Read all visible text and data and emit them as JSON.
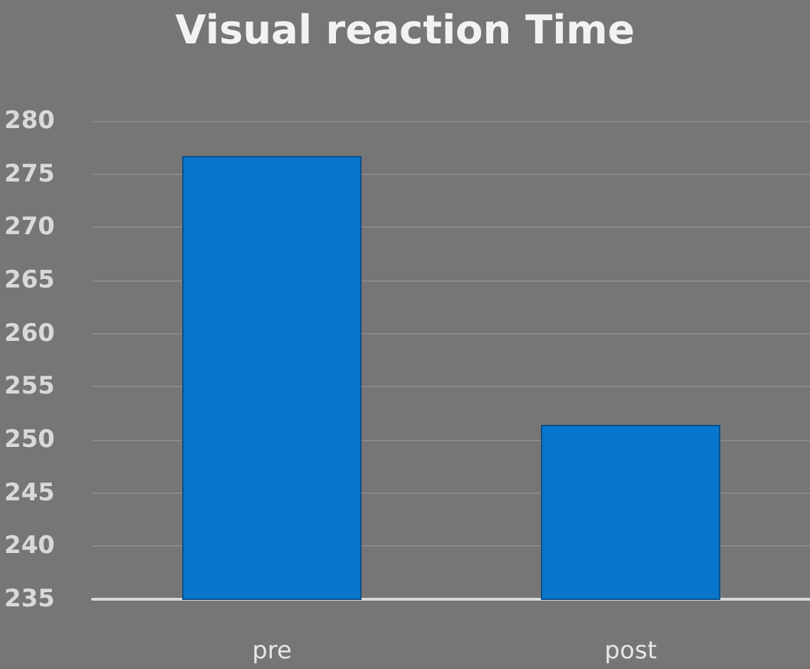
{
  "chart_data": {
    "type": "bar",
    "title": "Visual reaction Time",
    "categories": [
      "pre",
      "post"
    ],
    "values": [
      276.7,
      251.4
    ],
    "color": "#0876cc",
    "ylim": [
      235,
      280
    ],
    "yticks": [
      235,
      240,
      245,
      250,
      255,
      260,
      265,
      270,
      275,
      280
    ],
    "grid": "y"
  }
}
